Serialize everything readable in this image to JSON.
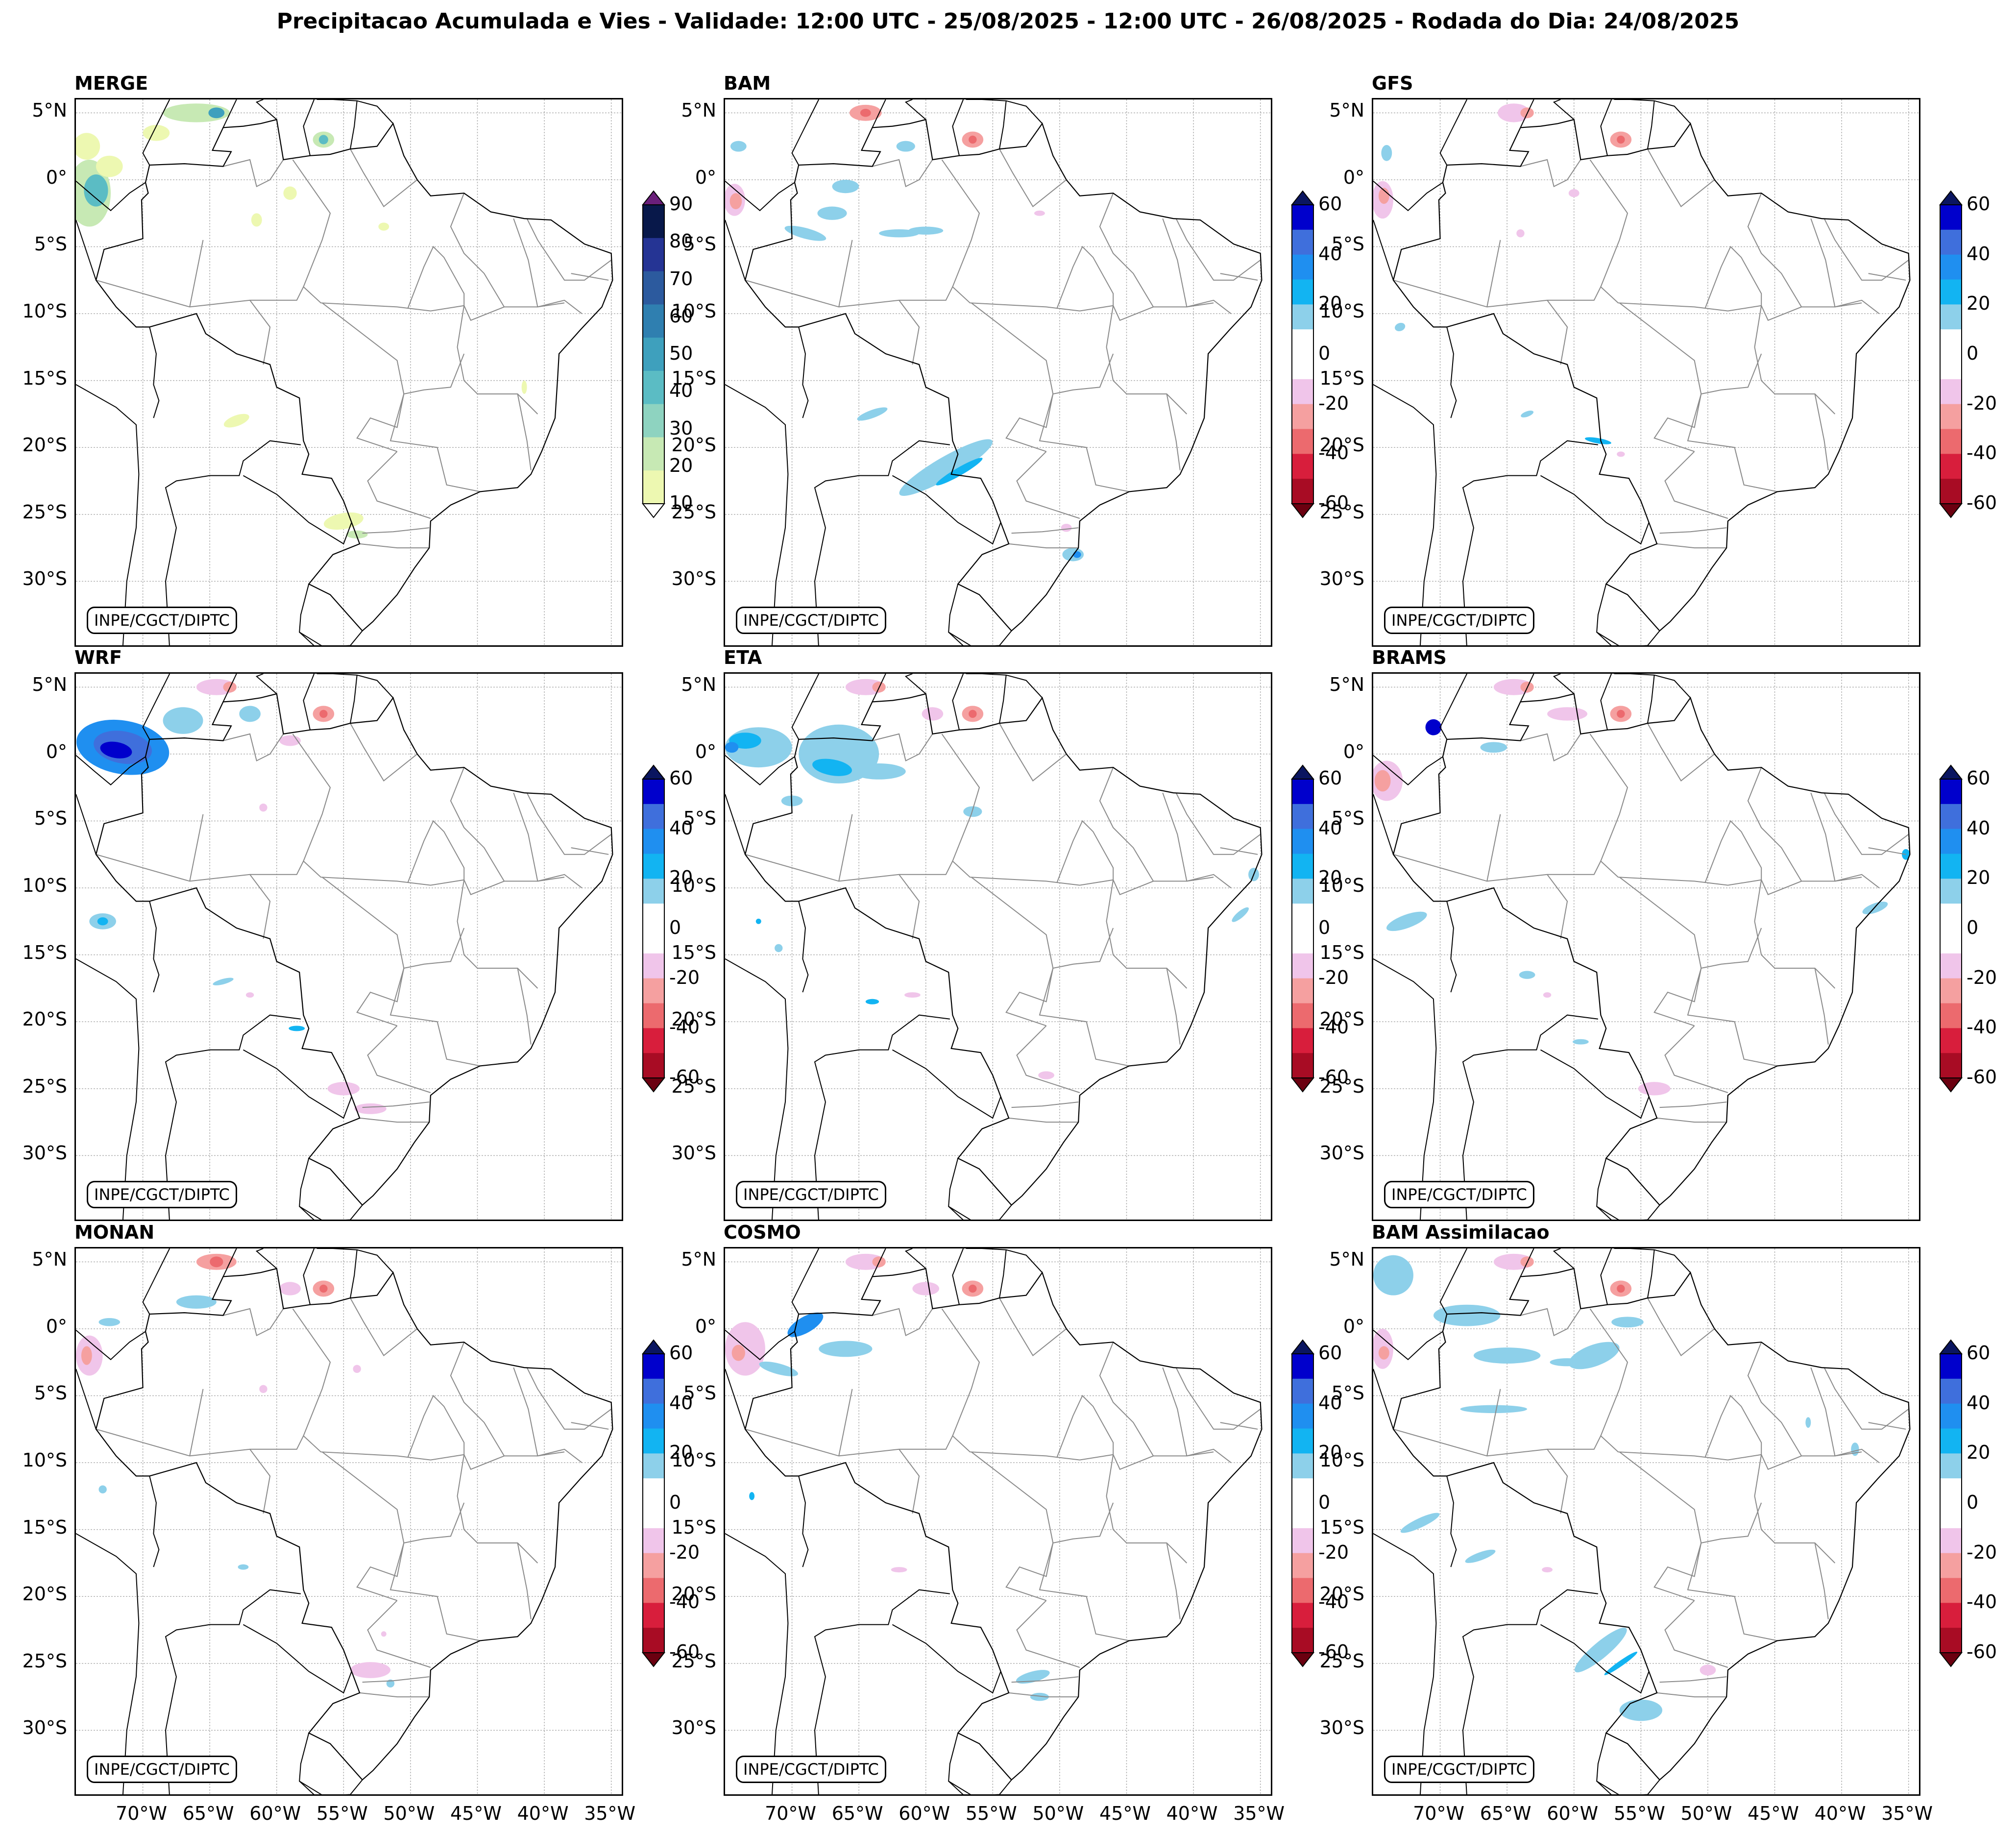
{
  "title": "Precipitacao Acumulada e Vies - Validade: 12:00 UTC - 25/08/2025 - 12:00 UTC - 26/08/2025 - Rodada do Dia: 24/08/2025",
  "credit": "INPE/CGCT/DIPTC",
  "lat_labels": [
    "5°N",
    "0°",
    "5°S",
    "10°S",
    "15°S",
    "20°S",
    "25°S",
    "30°S"
  ],
  "lon_labels": [
    "70°W",
    "65°W",
    "60°W",
    "55°W",
    "50°W",
    "45°W",
    "40°W",
    "35°W"
  ],
  "panels": [
    {
      "name": "MERGE",
      "colorbar": "precip"
    },
    {
      "name": "BAM",
      "colorbar": "bias"
    },
    {
      "name": "GFS",
      "colorbar": "bias"
    },
    {
      "name": "WRF",
      "colorbar": "bias"
    },
    {
      "name": "ETA",
      "colorbar": "bias"
    },
    {
      "name": "BRAMS",
      "colorbar": "bias"
    },
    {
      "name": "MONAN",
      "colorbar": "bias"
    },
    {
      "name": "COSMO",
      "colorbar": "bias"
    },
    {
      "name": "BAM Assimilacao",
      "colorbar": "bias"
    }
  ],
  "colorbars": {
    "precip": {
      "ticks": [
        "90",
        "80",
        "70",
        "60",
        "50",
        "40",
        "30",
        "20",
        "10"
      ],
      "colors": [
        "#08184a",
        "#253494",
        "#2c5a9e",
        "#2f7fb0",
        "#3ea0bd",
        "#5bbcc4",
        "#8ed3c0",
        "#c7e9b4",
        "#edf8b1"
      ],
      "top_arrow": "#6a1f7a",
      "bottom_arrow": "#ffffff"
    },
    "bias": {
      "ticks": [
        "60",
        "40",
        "20",
        "0",
        "-20",
        "-40",
        "-60"
      ],
      "colors": [
        "#0000cc",
        "#3f6fdc",
        "#1f8ff0",
        "#12b4f2",
        "#8dd0ea",
        "#ffffff",
        "#ffffff",
        "#f0c5ea",
        "#f5a0a0",
        "#ec6a6e",
        "#d81e3c",
        "#a80c24"
      ],
      "top_arrow": "#0a1560",
      "bottom_arrow": "#6b0010"
    }
  }
}
